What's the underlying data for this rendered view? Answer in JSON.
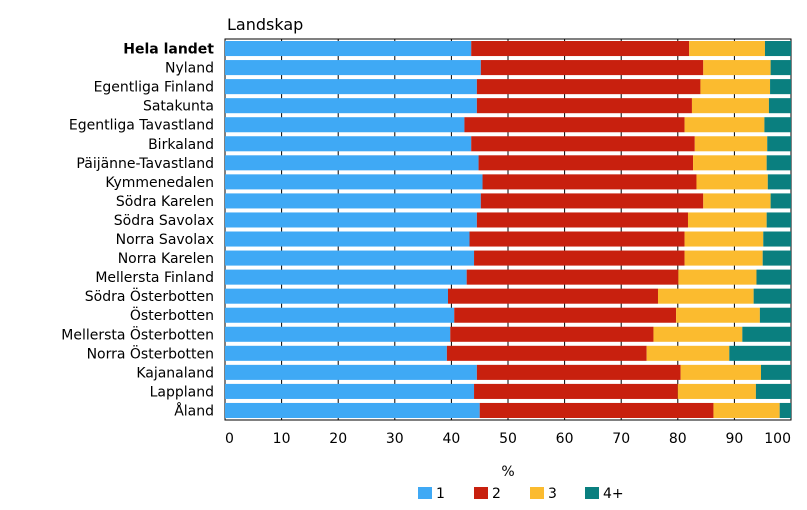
{
  "chart_data": {
    "type": "bar",
    "orientation": "horizontal",
    "stacked": true,
    "title": "Landskap",
    "xlabel": "%",
    "xlim": [
      0,
      100
    ],
    "xticks": [
      0,
      10,
      20,
      30,
      40,
      50,
      60,
      70,
      80,
      90,
      100
    ],
    "grid": true,
    "legend_position": "bottom",
    "categories": [
      "Hela landet",
      "Nyland",
      "Egentliga Finland",
      "Satakunta",
      "Egentliga Tavastland",
      "Birkaland",
      "Päijänne-Tavastland",
      "Kymmenedalen",
      "Södra Karelen",
      "Södra Savolax",
      "Norra Savolax",
      "Norra Karelen",
      "Mellersta Finland",
      "Södra Österbotten",
      "Österbotten",
      "Mellersta Österbotten",
      "Norra Österbotten",
      "Kajanaland",
      "Lappland",
      "Åland"
    ],
    "bold_categories": [
      "Hela landet"
    ],
    "series": [
      {
        "name": "1",
        "color": "#3fa9f5",
        "values": [
          43.5,
          45.2,
          44.5,
          44.5,
          42.3,
          43.5,
          44.8,
          45.5,
          45.2,
          44.5,
          43.2,
          44.0,
          42.7,
          39.4,
          40.5,
          39.8,
          39.2,
          44.5,
          44.0,
          45.0
        ]
      },
      {
        "name": "2",
        "color": "#c8200e",
        "values": [
          38.5,
          39.3,
          39.5,
          38.0,
          38.9,
          39.5,
          37.9,
          37.8,
          39.3,
          37.3,
          38.0,
          37.2,
          37.4,
          37.1,
          39.2,
          35.9,
          35.3,
          36.0,
          36.0,
          41.3
        ]
      },
      {
        "name": "3",
        "color": "#fbbb2f",
        "values": [
          13.4,
          11.9,
          12.3,
          13.6,
          14.1,
          12.8,
          13.0,
          12.6,
          11.9,
          13.9,
          13.9,
          13.8,
          13.8,
          16.9,
          14.8,
          15.7,
          14.6,
          14.2,
          13.8,
          11.7
        ]
      },
      {
        "name": "4+",
        "color": "#0a7f7f",
        "values": [
          4.6,
          3.6,
          3.7,
          3.9,
          4.7,
          4.2,
          4.3,
          4.1,
          3.6,
          4.3,
          4.9,
          5.0,
          6.1,
          6.6,
          5.5,
          8.6,
          10.9,
          5.3,
          6.2,
          2.0
        ]
      }
    ]
  }
}
